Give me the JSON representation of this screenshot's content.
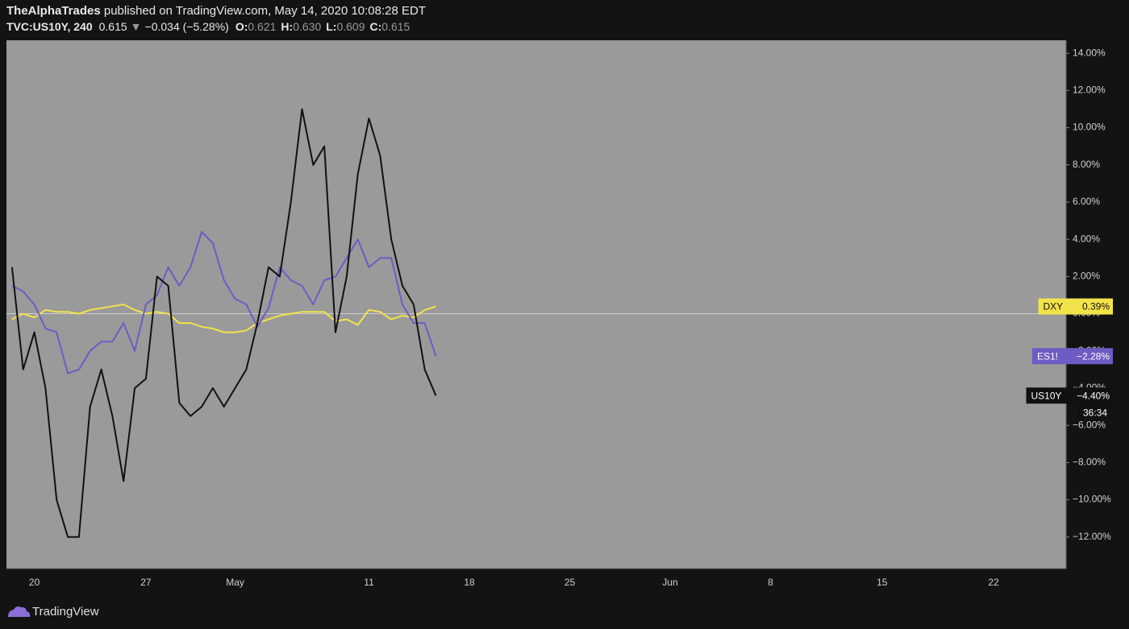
{
  "header": {
    "author": "TheAlphaTrades",
    "published": "published on TradingView.com, May 14, 2020 10:08:28 EDT",
    "symbol": "TVC:US10Y, 240",
    "last": "0.615",
    "change": "−0.034 (−5.28%)",
    "ohlc": [
      {
        "key": "O:",
        "value": "0.621"
      },
      {
        "key": "H:",
        "value": "0.630"
      },
      {
        "key": "L:",
        "value": "0.609"
      },
      {
        "key": "C:",
        "value": "0.615"
      }
    ]
  },
  "footer": {
    "brand": "TradingView"
  },
  "chart_data": {
    "type": "line",
    "background": "#9a9a9a",
    "zero_line": true,
    "ylim": [
      -13.7,
      14.7
    ],
    "yticks": [
      {
        "value": 14,
        "label": "14.00%"
      },
      {
        "value": 12,
        "label": "12.00%"
      },
      {
        "value": 10,
        "label": "10.00%"
      },
      {
        "value": 8,
        "label": "8.00%"
      },
      {
        "value": 6,
        "label": "6.00%"
      },
      {
        "value": 4,
        "label": "4.00%"
      },
      {
        "value": 2,
        "label": "2.00%"
      },
      {
        "value": 0,
        "label": "0.00%"
      },
      {
        "value": -2,
        "label": "−2.00%"
      },
      {
        "value": -4,
        "label": "−4.00%"
      },
      {
        "value": -6,
        "label": "−6.00%"
      },
      {
        "value": -8,
        "label": "−8.00%"
      },
      {
        "value": -10,
        "label": "−10.00%"
      },
      {
        "value": -12,
        "label": "−12.00%"
      }
    ],
    "categories": [
      null,
      null,
      "20",
      null,
      null,
      null,
      null,
      null,
      null,
      null,
      null,
      null,
      "27",
      null,
      null,
      null,
      null,
      null,
      null,
      null,
      "May",
      null,
      null,
      null,
      null,
      null,
      null,
      null,
      null,
      null,
      null,
      null,
      "11",
      null,
      null,
      null,
      null,
      null,
      null,
      null,
      null,
      "18",
      null,
      null,
      null,
      null,
      null,
      null,
      null,
      null,
      "25",
      null,
      null,
      null,
      null,
      null,
      null,
      null,
      null,
      "Jun",
      null,
      null,
      null,
      null,
      null,
      null,
      null,
      null,
      "8",
      null,
      null,
      null,
      null,
      null,
      null,
      null,
      null,
      null,
      "15",
      null,
      null,
      null,
      null,
      null,
      null,
      null,
      null,
      null,
      "22",
      null,
      null,
      null,
      null,
      null,
      null
    ],
    "countdown": "36:34",
    "series": [
      {
        "name": "DXY",
        "color": "#f2e34a",
        "text_color": "#111111",
        "last_label": "0.39%",
        "values": [
          -0.3,
          0.0,
          -0.2,
          0.2,
          0.1,
          0.1,
          0.0,
          0.2,
          0.3,
          0.4,
          0.5,
          0.2,
          0.0,
          0.1,
          0.0,
          -0.5,
          -0.5,
          -0.7,
          -0.8,
          -1.0,
          -1.0,
          -0.9,
          -0.5,
          -0.3,
          -0.1,
          0.0,
          0.1,
          0.1,
          0.1,
          -0.4,
          -0.3,
          -0.6,
          0.2,
          0.1,
          -0.3,
          -0.1,
          -0.2,
          0.2,
          0.39,
          null,
          null,
          null,
          null,
          null,
          null,
          null,
          null,
          null,
          null,
          null,
          null,
          null,
          null,
          null,
          null,
          null,
          null,
          null,
          null,
          null,
          null,
          null,
          null,
          null,
          null,
          null,
          null,
          null,
          null,
          null,
          null,
          null,
          null,
          null,
          null,
          null,
          null,
          null,
          null,
          null,
          null,
          null,
          null,
          null,
          null,
          null,
          null,
          null,
          null,
          null,
          null,
          null,
          null,
          null,
          null
        ]
      },
      {
        "name": "ES1!",
        "color": "#6f5bc4",
        "text_color": "#ffffff",
        "last_label": "−2.28%",
        "values": [
          1.5,
          1.2,
          0.5,
          -0.8,
          -1.0,
          -3.2,
          -3.0,
          -2.0,
          -1.5,
          -1.5,
          -0.5,
          -2.0,
          0.5,
          1.0,
          2.5,
          1.5,
          2.5,
          4.4,
          3.8,
          1.8,
          0.8,
          0.5,
          -0.7,
          0.3,
          2.5,
          1.8,
          1.5,
          0.5,
          1.8,
          2.0,
          3.0,
          4.0,
          2.5,
          3.0,
          3.0,
          0.5,
          -0.5,
          -0.5,
          -2.28,
          null,
          null,
          null,
          null,
          null,
          null,
          null,
          null,
          null,
          null,
          null,
          null,
          null,
          null,
          null,
          null,
          null,
          null,
          null,
          null,
          null,
          null,
          null,
          null,
          null,
          null,
          null,
          null,
          null,
          null,
          null,
          null,
          null,
          null,
          null,
          null,
          null,
          null,
          null,
          null,
          null,
          null,
          null,
          null,
          null,
          null,
          null,
          null,
          null,
          null,
          null,
          null,
          null,
          null,
          null,
          null
        ]
      },
      {
        "name": "US10Y",
        "color": "#111111",
        "text_color": "#ffffff",
        "last_label": "−4.40%",
        "values": [
          2.5,
          -3.0,
          -1.0,
          -4.0,
          -10.0,
          -12.0,
          -12.0,
          -5.0,
          -3.0,
          -5.5,
          -9.0,
          -4.0,
          -3.5,
          2.0,
          1.5,
          -4.8,
          -5.5,
          -5.0,
          -4.0,
          -5.0,
          -4.0,
          -3.0,
          -0.5,
          2.5,
          2.0,
          6.0,
          11.0,
          8.0,
          9.0,
          -1.0,
          2.0,
          7.5,
          10.5,
          8.5,
          4.0,
          1.5,
          0.5,
          -3.0,
          -4.4,
          null,
          null,
          null,
          null,
          null,
          null,
          null,
          null,
          null,
          null,
          null,
          null,
          null,
          null,
          null,
          null,
          null,
          null,
          null,
          null,
          null,
          null,
          null,
          null,
          null,
          null,
          null,
          null,
          null,
          null,
          null,
          null,
          null,
          null,
          null,
          null,
          null,
          null,
          null,
          null,
          null,
          null,
          null,
          null,
          null,
          null,
          null,
          null,
          null,
          null,
          null,
          null,
          null,
          null,
          null,
          null
        ]
      }
    ]
  }
}
